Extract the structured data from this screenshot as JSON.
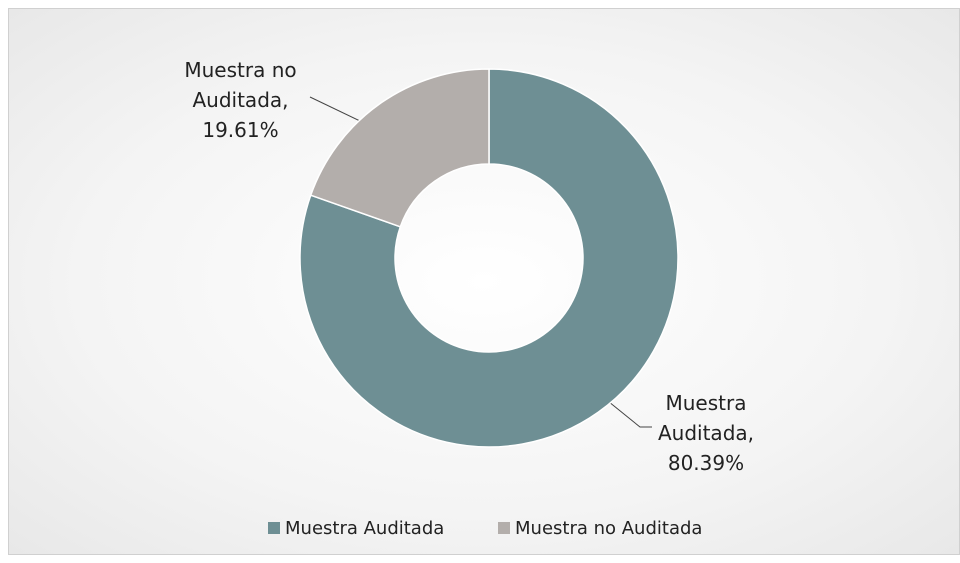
{
  "chart_data": {
    "type": "donut",
    "categories": [
      "Muestra Auditada",
      "Muestra no Auditada"
    ],
    "values": [
      80.39,
      19.61
    ],
    "value_labels": [
      "Muestra Auditada, 80.39%",
      "Muestra no Auditada, 19.61%"
    ],
    "colors": [
      "#6e8f94",
      "#b3aeab"
    ],
    "legend": "bottom"
  }
}
